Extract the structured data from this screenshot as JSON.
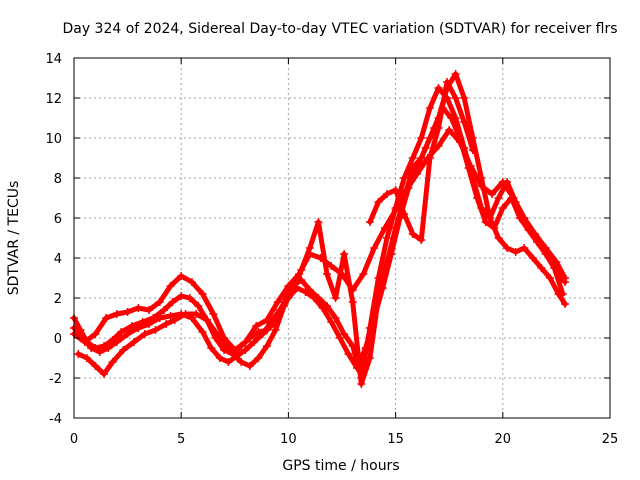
{
  "chart_data": {
    "type": "scatter",
    "title": "Day 324 of 2024, Sidereal Day-to-day VTEC variation (SDTVAR) for receiver flrs",
    "xlabel": "GPS time / hours",
    "ylabel": "SDTVAR / TECUs",
    "xlim": [
      0,
      25
    ],
    "ylim": [
      -4,
      14
    ],
    "xticks": [
      0,
      5,
      10,
      15,
      20,
      25
    ],
    "yticks": [
      -4,
      -2,
      0,
      2,
      4,
      6,
      8,
      10,
      12,
      14
    ],
    "grid": true,
    "marker": "+",
    "color": "#ff0000",
    "series": [
      {
        "name": "pass-1",
        "x": [
          0.0,
          0.3,
          0.6,
          1.0,
          1.4,
          1.8,
          2.2,
          2.7,
          3.2,
          3.7,
          4.2,
          4.6,
          5.0,
          5.4,
          5.8,
          6.2,
          6.6,
          7.0,
          7.4,
          7.8,
          8.2,
          8.6,
          9.0,
          9.4,
          9.8,
          10.2,
          10.6,
          11.0,
          11.4,
          11.8,
          12.2,
          12.6,
          13.0,
          13.4,
          13.8,
          14.2,
          14.6,
          15.0,
          15.4,
          15.8,
          16.2,
          16.6,
          17.0,
          17.4,
          17.8,
          18.2,
          18.6,
          19.0,
          19.4,
          19.8,
          20.2,
          20.6,
          21.0,
          21.4,
          21.8,
          22.2,
          22.6,
          22.9
        ],
        "y": [
          1.0,
          0.4,
          -0.2,
          -0.5,
          -0.4,
          -0.1,
          0.3,
          0.6,
          0.8,
          1.0,
          1.4,
          1.8,
          2.1,
          2.0,
          1.6,
          0.9,
          0.0,
          -0.6,
          -0.8,
          -0.4,
          0.0,
          0.3,
          0.4,
          0.8,
          1.8,
          2.6,
          2.9,
          2.4,
          2.0,
          1.6,
          1.0,
          0.2,
          -0.4,
          -2.0,
          0.5,
          3.0,
          5.0,
          6.5,
          8.0,
          9.0,
          10.0,
          11.5,
          12.5,
          12.0,
          11.0,
          9.5,
          8.0,
          6.5,
          6.0,
          7.0,
          7.8,
          6.8,
          6.0,
          5.2,
          4.6,
          4.0,
          3.2,
          2.8
        ]
      },
      {
        "name": "pass-2",
        "x": [
          0.0,
          0.4,
          0.8,
          1.2,
          1.6,
          2.0,
          2.5,
          3.0,
          3.5,
          4.0,
          4.5,
          5.0,
          5.5,
          6.0,
          6.4,
          6.8,
          7.2,
          7.6,
          8.0,
          8.4,
          8.8,
          9.2,
          9.6,
          10.0,
          10.4,
          10.8,
          11.2,
          11.6,
          12.0,
          12.4,
          12.8,
          13.2,
          13.6,
          14.0,
          14.4,
          14.8,
          15.2,
          15.6,
          16.0,
          16.4,
          16.8,
          17.2,
          17.6,
          18.0,
          18.4,
          18.8,
          19.2,
          19.6,
          20.0,
          20.4,
          20.8,
          21.2,
          21.6,
          22.0,
          22.4,
          22.8
        ],
        "y": [
          0.5,
          0.0,
          -0.5,
          -0.7,
          -0.5,
          -0.2,
          0.2,
          0.5,
          0.7,
          1.0,
          1.1,
          1.2,
          1.0,
          0.3,
          -0.5,
          -1.0,
          -1.2,
          -0.9,
          -0.6,
          -0.2,
          0.2,
          0.8,
          1.4,
          2.0,
          2.5,
          2.3,
          2.0,
          1.5,
          0.8,
          0.0,
          -0.8,
          -1.5,
          -0.5,
          1.0,
          2.5,
          4.2,
          6.0,
          7.5,
          8.5,
          9.5,
          10.5,
          11.5,
          11.0,
          10.0,
          8.5,
          7.0,
          5.8,
          5.5,
          6.5,
          7.0,
          6.0,
          5.4,
          4.8,
          4.2,
          3.5,
          2.2
        ]
      },
      {
        "name": "pass-3",
        "x": [
          0.2,
          0.6,
          1.0,
          1.4,
          1.8,
          2.3,
          2.8,
          3.3,
          3.8,
          4.3,
          4.7,
          5.2,
          5.7,
          6.2,
          6.6,
          7.0,
          7.4,
          7.8,
          8.2,
          8.6,
          9.0,
          9.4,
          9.8,
          10.2,
          10.6,
          11.0,
          11.4,
          11.8,
          12.2,
          12.6,
          13.0,
          13.4,
          13.8,
          14.2,
          14.6,
          15.0,
          15.4,
          15.8,
          16.2,
          16.6,
          17.0,
          17.4,
          17.8,
          18.2,
          18.6,
          19.0,
          19.4,
          19.8,
          20.2,
          20.6,
          21.0,
          21.4,
          21.8,
          22.2,
          22.6,
          22.9
        ],
        "y": [
          -0.8,
          -1.0,
          -1.4,
          -1.8,
          -1.2,
          -0.6,
          -0.2,
          0.2,
          0.4,
          0.7,
          0.9,
          1.2,
          1.2,
          0.9,
          0.3,
          -0.3,
          -0.8,
          -1.2,
          -1.4,
          -1.0,
          -0.4,
          0.4,
          1.6,
          2.4,
          3.4,
          4.5,
          5.8,
          3.2,
          2.0,
          4.2,
          1.8,
          -2.3,
          -1.0,
          2.0,
          3.8,
          5.5,
          7.0,
          8.5,
          9.0,
          10.0,
          11.0,
          12.5,
          13.2,
          12.0,
          10.0,
          8.0,
          6.0,
          5.0,
          4.5,
          4.3,
          4.5,
          4.0,
          3.5,
          3.0,
          2.2,
          1.7
        ]
      },
      {
        "name": "pass-4",
        "x": [
          0.0,
          0.5,
          1.0,
          1.5,
          2.0,
          2.5,
          3.0,
          3.5,
          4.0,
          4.5,
          5.0,
          5.5,
          6.0,
          6.5,
          7.0,
          7.5,
          8.0,
          8.5,
          9.0,
          9.5,
          10.0,
          10.5,
          11.0,
          11.5,
          12.0,
          12.5,
          13.0,
          13.5,
          14.0,
          14.5,
          15.0,
          15.5,
          16.0,
          16.5,
          17.0,
          17.5,
          18.0,
          18.5,
          19.0,
          19.5,
          20.0,
          20.5,
          21.0,
          21.5,
          22.0,
          22.5,
          22.9
        ],
        "y": [
          0.2,
          -0.2,
          0.2,
          1.0,
          1.2,
          1.3,
          1.5,
          1.4,
          1.8,
          2.6,
          3.1,
          2.8,
          2.2,
          1.2,
          0.0,
          -0.6,
          -0.2,
          0.6,
          0.9,
          1.8,
          2.6,
          3.2,
          4.2,
          4.0,
          3.6,
          3.2,
          2.4,
          3.2,
          4.5,
          5.5,
          6.4,
          7.4,
          8.2,
          9.0,
          9.6,
          10.4,
          9.8,
          8.6,
          7.6,
          7.2,
          7.8,
          7.0,
          6.0,
          5.2,
          4.5,
          3.8,
          3.0
        ]
      },
      {
        "name": "pass-5",
        "x": [
          13.8,
          14.2,
          14.6,
          15.0,
          15.4,
          15.8,
          16.2,
          16.6,
          17.0,
          17.4,
          17.8,
          18.2,
          18.6
        ],
        "y": [
          5.8,
          6.8,
          7.2,
          7.4,
          6.2,
          5.2,
          4.9,
          9.0,
          10.5,
          12.8,
          12.0,
          10.8,
          9.4
        ]
      }
    ]
  }
}
